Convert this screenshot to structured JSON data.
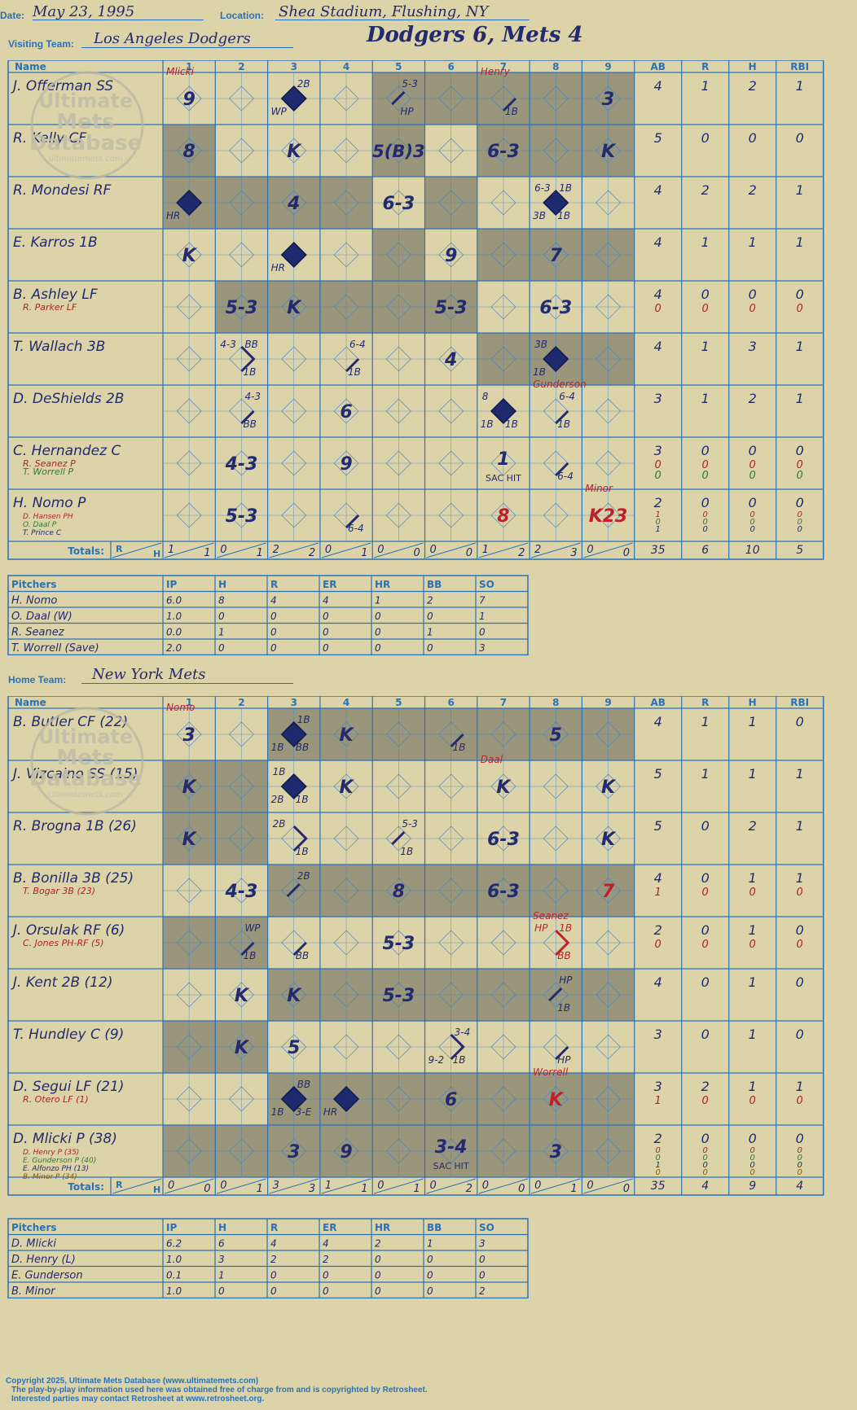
{
  "header": {
    "date_label": "Date:",
    "date": "May 23, 1995",
    "location_label": "Location:",
    "location": "Shea Stadium, Flushing, NY",
    "visiting_label": "Visiting Team:",
    "visiting_team": "Los Angeles Dodgers",
    "home_label": "Home Team:",
    "home_team": "New York Mets",
    "result": "Dodgers 6, Mets 4"
  },
  "columns": {
    "name": "Name",
    "innings": [
      "1",
      "2",
      "3",
      "4",
      "5",
      "6",
      "7",
      "8",
      "9"
    ],
    "stats": [
      "AB",
      "R",
      "H",
      "RBI"
    ]
  },
  "totals_label": "Totals:",
  "visitors": {
    "innings_shaded": [
      [
        1,
        2
      ],
      [
        2,
        4
      ],
      [
        2,
        4
      ],
      [
        2,
        4
      ],
      [
        0,
        1,
        3,
        4
      ],
      [
        0,
        2,
        4
      ],
      [
        0,
        1,
        3,
        5
      ],
      [
        0,
        1,
        3,
        5
      ],
      [
        0,
        1,
        3,
        5
      ]
    ],
    "inning_total_cols": [
      [
        1,
        2
      ],
      [
        2,
        4
      ],
      [
        2,
        4
      ],
      [
        2,
        4
      ],
      [
        4,
        5
      ],
      [
        5,
        7
      ],
      [
        5,
        6
      ],
      [
        6,
        8
      ],
      [
        7,
        8
      ]
    ],
    "players": [
      {
        "name": "J. Offerman SS",
        "subs": [],
        "stats": [
          "4",
          "1",
          "2",
          "1"
        ],
        "sub_stats": []
      },
      {
        "name": "R. Kelly CF",
        "subs": [],
        "stats": [
          "5",
          "0",
          "0",
          "0"
        ],
        "sub_stats": []
      },
      {
        "name": "R. Mondesi RF",
        "subs": [],
        "stats": [
          "4",
          "2",
          "2",
          "1"
        ],
        "sub_stats": []
      },
      {
        "name": "E. Karros 1B",
        "subs": [],
        "stats": [
          "4",
          "1",
          "1",
          "1"
        ],
        "sub_stats": []
      },
      {
        "name": "B. Ashley LF",
        "subs": [
          {
            "name": "R. Parker LF",
            "color": "#b22222"
          }
        ],
        "stats": [
          "4",
          "0",
          "0",
          "0"
        ],
        "sub_stats": [
          [
            "0",
            "0",
            "0",
            "0"
          ]
        ]
      },
      {
        "name": "T. Wallach 3B",
        "subs": [],
        "stats": [
          "4",
          "1",
          "3",
          "1"
        ],
        "sub_stats": []
      },
      {
        "name": "D. DeShields 2B",
        "subs": [],
        "stats": [
          "3",
          "1",
          "2",
          "1"
        ],
        "sub_stats": []
      },
      {
        "name": "C. Hernandez C",
        "subs": [
          {
            "name": "R. Seanez P",
            "color": "#b22222"
          },
          {
            "name": "T. Worrell P",
            "color": "#2e7d32"
          }
        ],
        "stats": [
          "3",
          "0",
          "0",
          "0"
        ],
        "sub_stats": [
          [
            "0",
            "0",
            "0",
            "0"
          ],
          [
            "0",
            "0",
            "0",
            "0"
          ]
        ]
      },
      {
        "name": "H. Nomo P",
        "subs": [
          {
            "name": "D. Hansen PH",
            "color": "#b22222"
          },
          {
            "name": "O. Daal P",
            "color": "#2e7d32"
          },
          {
            "name": "T. Prince C",
            "color": "#232a6e"
          }
        ],
        "stats": [
          "2",
          "0",
          "0",
          "0"
        ],
        "sub_stats": [
          [
            "1",
            "0",
            "0",
            "0"
          ],
          [
            "0",
            "0",
            "0",
            "0"
          ],
          [
            "1",
            "0",
            "0",
            "0"
          ]
        ]
      }
    ],
    "cells": [
      {
        "r": 0,
        "c": 0,
        "t": "9",
        "note": "Mlicki"
      },
      {
        "r": 0,
        "c": 2,
        "dia": 1,
        "tr": "2B",
        "bl": "WP"
      },
      {
        "r": 0,
        "c": 4,
        "path": "half",
        "tr": "5-3",
        "br": "HP"
      },
      {
        "r": 0,
        "c": 6,
        "path": "one",
        "br": "1B",
        "note": "Henry"
      },
      {
        "r": 0,
        "c": 8,
        "t": "3"
      },
      {
        "r": 1,
        "c": 0,
        "t": "8"
      },
      {
        "r": 1,
        "c": 2,
        "t": "K"
      },
      {
        "r": 1,
        "c": 4,
        "t": "5(B)3"
      },
      {
        "r": 1,
        "c": 6,
        "t": "6-3"
      },
      {
        "r": 1,
        "c": 8,
        "t": "K"
      },
      {
        "r": 2,
        "c": 0,
        "dia": 1,
        "bl": "HR"
      },
      {
        "r": 2,
        "c": 2,
        "t": "4"
      },
      {
        "r": 2,
        "c": 4,
        "t": "6-3"
      },
      {
        "r": 2,
        "c": 7,
        "dia": 1,
        "tl": "6-3",
        "tr": "1B",
        "bl": "3B",
        "br": "1B"
      },
      {
        "r": 3,
        "c": 0,
        "t": "K"
      },
      {
        "r": 3,
        "c": 2,
        "dia": 1,
        "bl": "HR"
      },
      {
        "r": 3,
        "c": 5,
        "t": "9"
      },
      {
        "r": 3,
        "c": 7,
        "t": "7"
      },
      {
        "r": 4,
        "c": 1,
        "t": "5-3"
      },
      {
        "r": 4,
        "c": 2,
        "t": "K"
      },
      {
        "r": 4,
        "c": 5,
        "t": "5-3"
      },
      {
        "r": 4,
        "c": 7,
        "t": "6-3"
      },
      {
        "r": 5,
        "c": 1,
        "path": "two",
        "tl": "4-3",
        "tr": "BB",
        "br": "1B"
      },
      {
        "r": 5,
        "c": 3,
        "path": "one",
        "tr": "6-4",
        "br": "1B"
      },
      {
        "r": 5,
        "c": 5,
        "t": "4"
      },
      {
        "r": 5,
        "c": 7,
        "dia": 1,
        "tl": "3B",
        "bl": "1B"
      },
      {
        "r": 6,
        "c": 1,
        "path": "one",
        "tr": "4-3",
        "br": "BB"
      },
      {
        "r": 6,
        "c": 3,
        "t": "6"
      },
      {
        "r": 6,
        "c": 6,
        "dia": 1,
        "tl": "8",
        "bl": "1B",
        "br": "1B"
      },
      {
        "r": 6,
        "c": 7,
        "path": "one",
        "tr": "6-4",
        "br": "1B",
        "note": "Gunderson"
      },
      {
        "r": 7,
        "c": 1,
        "t": "4-3"
      },
      {
        "r": 7,
        "c": 3,
        "t": "9"
      },
      {
        "r": 7,
        "c": 6,
        "t": "1",
        "sub": "SAC HIT"
      },
      {
        "r": 7,
        "c": 7,
        "path": "one",
        "br": "6-4"
      },
      {
        "r": 8,
        "c": 1,
        "t": "5-3"
      },
      {
        "r": 8,
        "c": 3,
        "path": "one",
        "br": "6-4"
      },
      {
        "r": 8,
        "c": 6,
        "t": "8",
        "red": 1
      },
      {
        "r": 8,
        "c": 8,
        "t": "K23",
        "red": 1,
        "note": "Minor"
      }
    ],
    "inning_totals": [
      [
        "1",
        "1"
      ],
      [
        "0",
        "1"
      ],
      [
        "2",
        "2"
      ],
      [
        "0",
        "1"
      ],
      [
        "0",
        "0"
      ],
      [
        "0",
        "0"
      ],
      [
        "1",
        "2"
      ],
      [
        "2",
        "3"
      ],
      [
        "0",
        "0"
      ]
    ],
    "totals": [
      "35",
      "6",
      "10",
      "5"
    ]
  },
  "visitor_pitching": {
    "headers": [
      "Pitchers",
      "IP",
      "H",
      "R",
      "ER",
      "HR",
      "BB",
      "SO"
    ],
    "rows": [
      [
        "H. Nomo",
        "6.0",
        "8",
        "4",
        "4",
        "1",
        "2",
        "7"
      ],
      [
        "O. Daal (W)",
        "1.0",
        "0",
        "0",
        "0",
        "0",
        "0",
        "1"
      ],
      [
        "R. Seanez",
        "0.0",
        "1",
        "0",
        "0",
        "0",
        "1",
        "0"
      ],
      [
        "T. Worrell (Save)",
        "2.0",
        "0",
        "0",
        "0",
        "0",
        "0",
        "3"
      ]
    ]
  },
  "home": {
    "innings_shaded": [
      [
        1,
        2,
        4,
        6,
        8
      ],
      [
        1,
        2,
        4,
        6,
        8
      ],
      [
        0,
        3,
        5,
        7,
        8
      ],
      [
        0,
        3,
        5,
        7,
        8
      ],
      [
        0,
        3,
        5,
        7,
        8
      ],
      [
        0,
        3,
        5,
        7,
        8
      ],
      [
        0,
        3,
        5,
        7,
        8
      ],
      [
        0,
        3,
        5,
        7,
        8
      ],
      [
        0,
        3,
        5,
        7,
        8
      ]
    ],
    "inning_total_cols": [],
    "players": [
      {
        "name": "B. Butler CF (22)",
        "subs": [],
        "stats": [
          "4",
          "1",
          "1",
          "0"
        ],
        "sub_stats": []
      },
      {
        "name": "J. Vizcaino SS (15)",
        "subs": [],
        "stats": [
          "5",
          "1",
          "1",
          "1"
        ],
        "sub_stats": []
      },
      {
        "name": "R. Brogna 1B (26)",
        "subs": [],
        "stats": [
          "5",
          "0",
          "2",
          "1"
        ],
        "sub_stats": []
      },
      {
        "name": "B. Bonilla 3B (25)",
        "subs": [
          {
            "name": "T. Bogar 3B (23)",
            "color": "#b22222"
          }
        ],
        "stats": [
          "4",
          "0",
          "1",
          "1"
        ],
        "sub_stats": [
          [
            "1",
            "0",
            "0",
            "0"
          ]
        ]
      },
      {
        "name": "J. Orsulak RF (6)",
        "subs": [
          {
            "name": "C. Jones PH-RF (5)",
            "color": "#b22222"
          }
        ],
        "stats": [
          "2",
          "0",
          "1",
          "0"
        ],
        "sub_stats": [
          [
            "0",
            "0",
            "0",
            "0"
          ]
        ]
      },
      {
        "name": "J. Kent 2B (12)",
        "subs": [],
        "stats": [
          "4",
          "0",
          "1",
          "0"
        ],
        "sub_stats": []
      },
      {
        "name": "T. Hundley C (9)",
        "subs": [],
        "stats": [
          "3",
          "0",
          "1",
          "0"
        ],
        "sub_stats": []
      },
      {
        "name": "D. Segui LF (21)",
        "subs": [
          {
            "name": "R. Otero LF (1)",
            "color": "#b22222"
          }
        ],
        "stats": [
          "3",
          "2",
          "1",
          "1"
        ],
        "sub_stats": [
          [
            "1",
            "0",
            "0",
            "0"
          ]
        ]
      },
      {
        "name": "D. Mlicki P (38)",
        "subs": [
          {
            "name": "D. Henry P (35)",
            "color": "#b22222"
          },
          {
            "name": "E. Gunderson P (40)",
            "color": "#2e7d32"
          },
          {
            "name": "E. Alfonzo PH (13)",
            "color": "#232a6e"
          },
          {
            "name": "B. Minor P (34)",
            "color": "#8a5a00"
          }
        ],
        "stats": [
          "2",
          "0",
          "0",
          "0"
        ],
        "sub_stats": [
          [
            "0",
            "0",
            "0",
            "0"
          ],
          [
            "0",
            "0",
            "0",
            "0"
          ],
          [
            "1",
            "0",
            "0",
            "0"
          ],
          [
            "0",
            "0",
            "0",
            "0"
          ]
        ]
      }
    ],
    "cells": [
      {
        "r": 0,
        "c": 0,
        "t": "3",
        "note": "Nomo"
      },
      {
        "r": 0,
        "c": 2,
        "dia": 1,
        "tr": "1B",
        "bl": "1B",
        "br": "BB"
      },
      {
        "r": 0,
        "c": 3,
        "t": "K"
      },
      {
        "r": 0,
        "c": 5,
        "path": "one",
        "br": "1B"
      },
      {
        "r": 0,
        "c": 7,
        "t": "5"
      },
      {
        "r": 1,
        "c": 0,
        "t": "K"
      },
      {
        "r": 1,
        "c": 2,
        "dia": 1,
        "tl": "1B",
        "bl": "2B",
        "br": "1B"
      },
      {
        "r": 1,
        "c": 3,
        "t": "K"
      },
      {
        "r": 1,
        "c": 6,
        "t": "K",
        "note": "Daal"
      },
      {
        "r": 1,
        "c": 8,
        "t": "K"
      },
      {
        "r": 2,
        "c": 0,
        "t": "K"
      },
      {
        "r": 2,
        "c": 2,
        "path": "two",
        "tl": "2B",
        "br": "1B"
      },
      {
        "r": 2,
        "c": 4,
        "path": "half",
        "tr": "5-3",
        "br": "1B"
      },
      {
        "r": 2,
        "c": 6,
        "t": "6-3"
      },
      {
        "r": 2,
        "c": 8,
        "t": "K"
      },
      {
        "r": 3,
        "c": 1,
        "t": "4-3"
      },
      {
        "r": 3,
        "c": 2,
        "path": "half",
        "tr": "2B"
      },
      {
        "r": 3,
        "c": 4,
        "t": "8"
      },
      {
        "r": 3,
        "c": 6,
        "t": "6-3"
      },
      {
        "r": 3,
        "c": 8,
        "t": "7",
        "red": 1
      },
      {
        "r": 4,
        "c": 1,
        "path": "one",
        "tr": "WP",
        "br": "1B"
      },
      {
        "r": 4,
        "c": 2,
        "path": "one",
        "br": "BB"
      },
      {
        "r": 4,
        "c": 4,
        "t": "5-3"
      },
      {
        "r": 4,
        "c": 7,
        "path": "two",
        "red": 1,
        "tl": "HP",
        "tr": "1B",
        "br": "BB",
        "note": "Seanez"
      },
      {
        "r": 5,
        "c": 1,
        "t": "K"
      },
      {
        "r": 5,
        "c": 2,
        "t": "K"
      },
      {
        "r": 5,
        "c": 4,
        "t": "5-3"
      },
      {
        "r": 5,
        "c": 7,
        "path": "half",
        "tr": "HP",
        "br": "1B"
      },
      {
        "r": 6,
        "c": 1,
        "t": "K"
      },
      {
        "r": 6,
        "c": 2,
        "t": "5"
      },
      {
        "r": 6,
        "c": 5,
        "path": "two",
        "tr": "3-4",
        "bl": "9-2",
        "br": "1B"
      },
      {
        "r": 6,
        "c": 7,
        "path": "one",
        "br": "HP"
      },
      {
        "r": 7,
        "c": 2,
        "dia": 1,
        "tr": "BB",
        "bl": "1B",
        "br": "3-E"
      },
      {
        "r": 7,
        "c": 3,
        "dia": 1,
        "bl": "HR"
      },
      {
        "r": 7,
        "c": 5,
        "t": "6"
      },
      {
        "r": 7,
        "c": 7,
        "t": "K",
        "red": 1,
        "note": "Worrell"
      },
      {
        "r": 8,
        "c": 2,
        "t": "3"
      },
      {
        "r": 8,
        "c": 3,
        "t": "9"
      },
      {
        "r": 8,
        "c": 5,
        "t": "3-4",
        "sub": "SAC HIT"
      },
      {
        "r": 8,
        "c": 7,
        "t": "3"
      }
    ],
    "inning_totals": [
      [
        "0",
        "0"
      ],
      [
        "0",
        "1"
      ],
      [
        "3",
        "3"
      ],
      [
        "1",
        "1"
      ],
      [
        "0",
        "1"
      ],
      [
        "0",
        "2"
      ],
      [
        "0",
        "0"
      ],
      [
        "0",
        "1"
      ],
      [
        "0",
        "0"
      ]
    ],
    "totals": [
      "35",
      "4",
      "9",
      "4"
    ]
  },
  "home_pitching": {
    "headers": [
      "Pitchers",
      "IP",
      "H",
      "R",
      "ER",
      "HR",
      "BB",
      "SO"
    ],
    "rows": [
      [
        "D. Mlicki",
        "6.2",
        "6",
        "4",
        "4",
        "2",
        "1",
        "3"
      ],
      [
        "D. Henry (L)",
        "1.0",
        "3",
        "2",
        "2",
        "0",
        "0",
        "0"
      ],
      [
        "E. Gunderson",
        "0.1",
        "1",
        "0",
        "0",
        "0",
        "0",
        "0"
      ],
      [
        "B. Minor",
        "1.0",
        "0",
        "0",
        "0",
        "0",
        "0",
        "2"
      ]
    ]
  },
  "watermark": {
    "line1": "Ultimate",
    "line2": "Mets",
    "line3": "Database",
    "line4": "ultimatemets.com"
  },
  "footer": {
    "line1": "Copyright 2025, Ultimate Mets Database (www.ultimatemets.com)",
    "line2": "The play-by-play information used here was obtained free of charge from and is copyrighted by Retrosheet.",
    "line3": "Interested parties may contact Retrosheet at www.retrosheet.org."
  },
  "colors": {
    "background": "#dcd3a8",
    "grid": "#2a72b8",
    "shade": "#9a967c",
    "ink": "#232a6e",
    "red": "#c0202a",
    "green": "#2e7d32"
  }
}
